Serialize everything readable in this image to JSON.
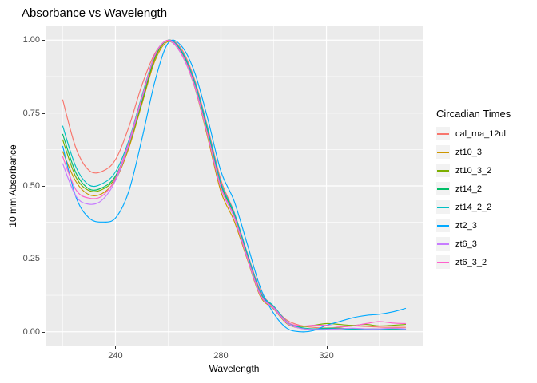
{
  "title": "Absorbance vs Wavelength",
  "legend": {
    "title": "Circadian Times",
    "position": "right"
  },
  "colors": {
    "panel_bg": "#EBEBEB",
    "grid_major": "#FFFFFF",
    "grid_minor": "#FFFFFF",
    "tick_mark": "#333333",
    "tick_label": "#4D4D4D",
    "legend_key_bg": "#F2F2F2",
    "text": "#000000",
    "plot_bg": "#FFFFFF"
  },
  "chart_data": {
    "type": "line",
    "title": "Absorbance vs Wavelength",
    "xlabel": "Wavelength",
    "ylabel": "10 mm Absorbance",
    "xlim": [
      213.5,
      356.5
    ],
    "ylim": [
      -0.05,
      1.05
    ],
    "grid": true,
    "legend_position": "right",
    "legend_title": "Circadian Times",
    "x_ticks": {
      "values": [
        240,
        280,
        320
      ],
      "labels": [
        "240",
        "280",
        "320"
      ]
    },
    "y_ticks": {
      "values": [
        0,
        0.25,
        0.5,
        0.75,
        1.0
      ],
      "labels": [
        "0.00",
        "0.25",
        "0.50",
        "0.75",
        "1.00"
      ]
    },
    "x_minor": [
      220,
      260,
      300,
      340
    ],
    "y_minor": [
      0.125,
      0.375,
      0.625,
      0.875
    ],
    "x": [
      220,
      225,
      230,
      235,
      240,
      245,
      250,
      255,
      260,
      265,
      270,
      275,
      280,
      285,
      290,
      295,
      300,
      305,
      310,
      315,
      320,
      325,
      330,
      335,
      340,
      345,
      350
    ],
    "series": [
      {
        "name": "cal_rna_12ul",
        "color": "#F8766D",
        "values": [
          0.795,
          0.63,
          0.553,
          0.55,
          0.59,
          0.7,
          0.845,
          0.955,
          1.0,
          0.97,
          0.865,
          0.7,
          0.52,
          0.41,
          0.27,
          0.14,
          0.085,
          0.04,
          0.022,
          0.015,
          0.013,
          0.015,
          0.02,
          0.018,
          0.016,
          0.015,
          0.015
        ]
      },
      {
        "name": "zt10_3",
        "color": "#CD9600",
        "values": [
          0.617,
          0.515,
          0.47,
          0.474,
          0.52,
          0.628,
          0.78,
          0.93,
          0.995,
          0.952,
          0.84,
          0.665,
          0.48,
          0.38,
          0.248,
          0.12,
          0.078,
          0.028,
          0.012,
          0.008,
          0.008,
          0.01,
          0.01,
          0.008,
          0.01,
          0.01,
          0.008
        ]
      },
      {
        "name": "zt10_3_2",
        "color": "#7CAE00",
        "values": [
          0.658,
          0.53,
          0.484,
          0.488,
          0.528,
          0.636,
          0.786,
          0.938,
          1.0,
          0.958,
          0.848,
          0.68,
          0.498,
          0.398,
          0.258,
          0.128,
          0.082,
          0.034,
          0.018,
          0.022,
          0.028,
          0.025,
          0.022,
          0.025,
          0.02,
          0.022,
          0.025
        ]
      },
      {
        "name": "zt14_2",
        "color": "#00BE67",
        "values": [
          0.677,
          0.545,
          0.49,
          0.494,
          0.534,
          0.642,
          0.794,
          0.944,
          1.0,
          0.962,
          0.852,
          0.688,
          0.504,
          0.404,
          0.263,
          0.13,
          0.084,
          0.034,
          0.015,
          0.01,
          0.012,
          0.012,
          0.01,
          0.01,
          0.01,
          0.008,
          0.008
        ]
      },
      {
        "name": "zt14_2_2",
        "color": "#00BFC4",
        "values": [
          0.705,
          0.565,
          0.503,
          0.508,
          0.548,
          0.654,
          0.808,
          0.95,
          1.0,
          0.964,
          0.858,
          0.694,
          0.51,
          0.408,
          0.268,
          0.134,
          0.088,
          0.035,
          0.014,
          0.009,
          0.01,
          0.01,
          0.008,
          0.008,
          0.008,
          0.008,
          0.008
        ]
      },
      {
        "name": "zt2_3",
        "color": "#00A9FF",
        "values": [
          0.636,
          0.462,
          0.39,
          0.376,
          0.39,
          0.48,
          0.66,
          0.86,
          0.99,
          0.98,
          0.89,
          0.73,
          0.55,
          0.448,
          0.3,
          0.15,
          0.063,
          0.012,
          0.0,
          0.004,
          0.022,
          0.035,
          0.048,
          0.056,
          0.06,
          0.068,
          0.08
        ]
      },
      {
        "name": "zt6_3",
        "color": "#C77CFF",
        "values": [
          0.576,
          0.465,
          0.437,
          0.452,
          0.518,
          0.64,
          0.798,
          0.95,
          0.998,
          0.952,
          0.842,
          0.672,
          0.492,
          0.392,
          0.252,
          0.124,
          0.08,
          0.03,
          0.012,
          0.008,
          0.008,
          0.01,
          0.012,
          0.01,
          0.01,
          0.012,
          0.01
        ]
      },
      {
        "name": "zt6_3_2",
        "color": "#FF61CC",
        "values": [
          0.6,
          0.487,
          0.458,
          0.466,
          0.526,
          0.648,
          0.803,
          0.948,
          1.0,
          0.955,
          0.846,
          0.676,
          0.496,
          0.396,
          0.256,
          0.127,
          0.083,
          0.034,
          0.02,
          0.022,
          0.022,
          0.018,
          0.02,
          0.028,
          0.035,
          0.03,
          0.028
        ]
      }
    ]
  }
}
